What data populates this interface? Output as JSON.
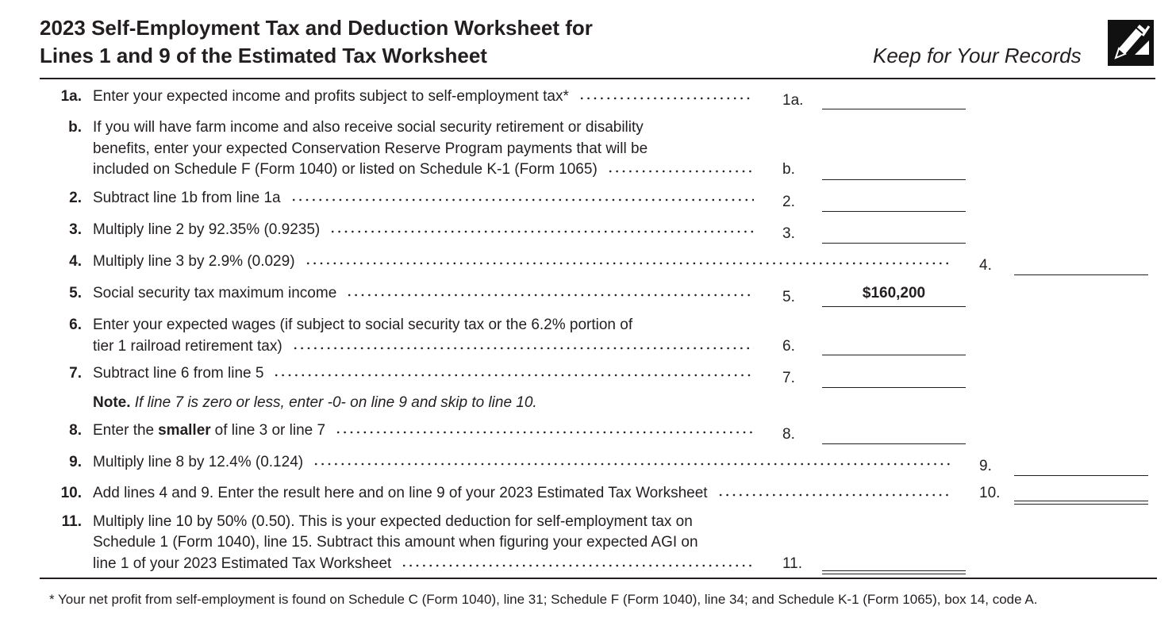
{
  "header": {
    "title": [
      "2023 Self-Employment Tax and Deduction Worksheet for",
      "Lines 1 and 9 of the Estimated Tax Worksheet"
    ],
    "keep": "Keep for Your Records"
  },
  "rows": [
    {
      "num": "1a.",
      "lines": [
        "Enter your expected income and profits subject to self-employment tax*"
      ],
      "ref": "1a."
    },
    {
      "num": "b.",
      "lines": [
        "If you will have farm income and also receive social security retirement or disability",
        "benefits, enter your expected Conservation Reserve Program payments that will be",
        "included on Schedule F (Form 1040) or listed on Schedule K-1 (Form 1065)"
      ],
      "ref": "b."
    },
    {
      "num": "2.",
      "lines": [
        "Subtract line 1b from line 1a"
      ],
      "ref": "2."
    },
    {
      "num": "3.",
      "lines": [
        "Multiply line 2 by 92.35% (0.9235)"
      ],
      "ref": "3."
    },
    {
      "num": "4.",
      "lines": [
        "Multiply line 3 by 2.9% (0.029)"
      ],
      "ref": "4."
    },
    {
      "num": "5.",
      "lines": [
        "Social security tax maximum income"
      ],
      "ref": "5.",
      "amount": "$160,200"
    },
    {
      "num": "6.",
      "lines": [
        "Enter your expected wages (if subject to social security tax or the 6.2% portion of",
        "tier 1 railroad retirement tax)"
      ],
      "ref": "6."
    },
    {
      "num": "7.",
      "lines": [
        "Subtract line 6 from line 5"
      ],
      "ref": "7."
    },
    {
      "num": "8.",
      "lines": [
        [
          "Enter the",
          "smaller",
          "of line 3 or line 7"
        ]
      ],
      "ref": "8."
    },
    {
      "num": "9.",
      "lines": [
        "Multiply line 8 by 12.4% (0.124)"
      ],
      "ref": "9."
    },
    {
      "num": "10.",
      "lines": [
        "Add lines 4 and 9. Enter the result here and on line 9 of your 2023 Estimated Tax Worksheet"
      ],
      "ref": "10."
    },
    {
      "num": "11.",
      "lines": [
        "Multiply line 10 by 50% (0.50). This is your expected deduction for self-employment tax on",
        "Schedule 1 (Form 1040), line 15. Subtract this amount when figuring your expected AGI on",
        "line 1 of your 2023 Estimated Tax Worksheet"
      ],
      "ref": "11."
    }
  ],
  "note": {
    "label": "Note.",
    "text": "If line 7 is zero or less, enter -0- on line 9 and skip to line 10."
  },
  "footnote": "* Your net profit from self-employment is found on Schedule C (Form 1040), line 31; Schedule F (Form 1040), line 34; and Schedule K-1 (Form 1065), box 14, code A."
}
